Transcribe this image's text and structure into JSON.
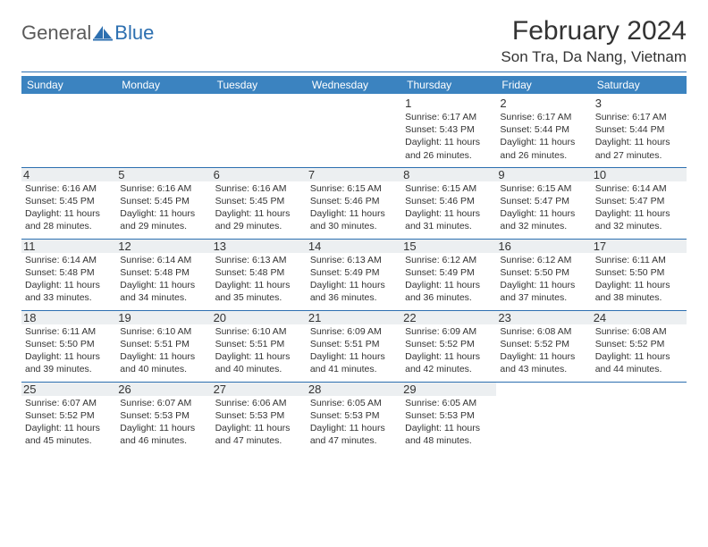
{
  "brand": {
    "part1": "General",
    "part2": "Blue"
  },
  "title": "February 2024",
  "location": "Son Tra, Da Nang, Vietnam",
  "colors": {
    "header_bg": "#3b83c0",
    "header_text": "#ffffff",
    "rule": "#2c6fb0",
    "alt_bg": "#eceff1",
    "text": "#333333",
    "logo_gray": "#5a5a5a",
    "logo_blue": "#2c6fb0"
  },
  "weekdays": [
    "Sunday",
    "Monday",
    "Tuesday",
    "Wednesday",
    "Thursday",
    "Friday",
    "Saturday"
  ],
  "weeks": [
    {
      "alt": false,
      "days": [
        null,
        null,
        null,
        null,
        {
          "n": "1",
          "sr": "6:17 AM",
          "ss": "5:43 PM",
          "dl": "11 hours and 26 minutes."
        },
        {
          "n": "2",
          "sr": "6:17 AM",
          "ss": "5:44 PM",
          "dl": "11 hours and 26 minutes."
        },
        {
          "n": "3",
          "sr": "6:17 AM",
          "ss": "5:44 PM",
          "dl": "11 hours and 27 minutes."
        }
      ]
    },
    {
      "alt": true,
      "days": [
        {
          "n": "4",
          "sr": "6:16 AM",
          "ss": "5:45 PM",
          "dl": "11 hours and 28 minutes."
        },
        {
          "n": "5",
          "sr": "6:16 AM",
          "ss": "5:45 PM",
          "dl": "11 hours and 29 minutes."
        },
        {
          "n": "6",
          "sr": "6:16 AM",
          "ss": "5:45 PM",
          "dl": "11 hours and 29 minutes."
        },
        {
          "n": "7",
          "sr": "6:15 AM",
          "ss": "5:46 PM",
          "dl": "11 hours and 30 minutes."
        },
        {
          "n": "8",
          "sr": "6:15 AM",
          "ss": "5:46 PM",
          "dl": "11 hours and 31 minutes."
        },
        {
          "n": "9",
          "sr": "6:15 AM",
          "ss": "5:47 PM",
          "dl": "11 hours and 32 minutes."
        },
        {
          "n": "10",
          "sr": "6:14 AM",
          "ss": "5:47 PM",
          "dl": "11 hours and 32 minutes."
        }
      ]
    },
    {
      "alt": true,
      "days": [
        {
          "n": "11",
          "sr": "6:14 AM",
          "ss": "5:48 PM",
          "dl": "11 hours and 33 minutes."
        },
        {
          "n": "12",
          "sr": "6:14 AM",
          "ss": "5:48 PM",
          "dl": "11 hours and 34 minutes."
        },
        {
          "n": "13",
          "sr": "6:13 AM",
          "ss": "5:48 PM",
          "dl": "11 hours and 35 minutes."
        },
        {
          "n": "14",
          "sr": "6:13 AM",
          "ss": "5:49 PM",
          "dl": "11 hours and 36 minutes."
        },
        {
          "n": "15",
          "sr": "6:12 AM",
          "ss": "5:49 PM",
          "dl": "11 hours and 36 minutes."
        },
        {
          "n": "16",
          "sr": "6:12 AM",
          "ss": "5:50 PM",
          "dl": "11 hours and 37 minutes."
        },
        {
          "n": "17",
          "sr": "6:11 AM",
          "ss": "5:50 PM",
          "dl": "11 hours and 38 minutes."
        }
      ]
    },
    {
      "alt": true,
      "days": [
        {
          "n": "18",
          "sr": "6:11 AM",
          "ss": "5:50 PM",
          "dl": "11 hours and 39 minutes."
        },
        {
          "n": "19",
          "sr": "6:10 AM",
          "ss": "5:51 PM",
          "dl": "11 hours and 40 minutes."
        },
        {
          "n": "20",
          "sr": "6:10 AM",
          "ss": "5:51 PM",
          "dl": "11 hours and 40 minutes."
        },
        {
          "n": "21",
          "sr": "6:09 AM",
          "ss": "5:51 PM",
          "dl": "11 hours and 41 minutes."
        },
        {
          "n": "22",
          "sr": "6:09 AM",
          "ss": "5:52 PM",
          "dl": "11 hours and 42 minutes."
        },
        {
          "n": "23",
          "sr": "6:08 AM",
          "ss": "5:52 PM",
          "dl": "11 hours and 43 minutes."
        },
        {
          "n": "24",
          "sr": "6:08 AM",
          "ss": "5:52 PM",
          "dl": "11 hours and 44 minutes."
        }
      ]
    },
    {
      "alt": true,
      "days": [
        {
          "n": "25",
          "sr": "6:07 AM",
          "ss": "5:52 PM",
          "dl": "11 hours and 45 minutes."
        },
        {
          "n": "26",
          "sr": "6:07 AM",
          "ss": "5:53 PM",
          "dl": "11 hours and 46 minutes."
        },
        {
          "n": "27",
          "sr": "6:06 AM",
          "ss": "5:53 PM",
          "dl": "11 hours and 47 minutes."
        },
        {
          "n": "28",
          "sr": "6:05 AM",
          "ss": "5:53 PM",
          "dl": "11 hours and 47 minutes."
        },
        {
          "n": "29",
          "sr": "6:05 AM",
          "ss": "5:53 PM",
          "dl": "11 hours and 48 minutes."
        },
        null,
        null
      ]
    }
  ],
  "labels": {
    "sunrise": "Sunrise: ",
    "sunset": "Sunset: ",
    "daylight": "Daylight: "
  }
}
